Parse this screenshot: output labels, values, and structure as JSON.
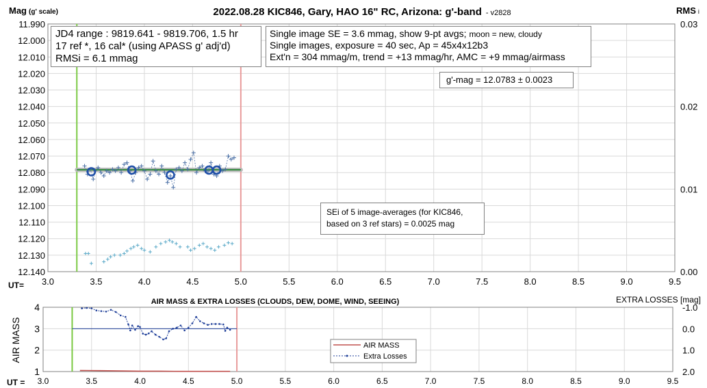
{
  "header": {
    "title": "2022.08.28 KIC846, Gary, HAO 16\" RC, Arizona: g'-band",
    "version": "- v2828",
    "left_axis_title": "Mag",
    "left_axis_sub": "(g' scale)",
    "right_axis_title": "RMS",
    "right_axis_sub": "i"
  },
  "info_left": {
    "line1": "JD4 range : 9819.641 - 9819.706,  1.5 hr",
    "line2": "17 ref *, 16 cal* (using APASS g' adj'd)",
    "line3": "RMSi = 6.1 mmag"
  },
  "info_right": {
    "line1a": "Single image SE = 3.6 mmag, show  9-pt avgs;",
    "line1b": "moon = new, cloudy",
    "line2": "Single images, exposure = 40 sec, Ap = 45x4x12b3",
    "line3": "Ext'n = 304 mmag/m, trend = +13 mmag/hr, AMC = +9 mmag/airmass"
  },
  "gmag_box": "g'-mag = 12.0783 ± 0.0023",
  "sei_box": {
    "line1": "SEi of 5 image-averages (for KIC846,",
    "line2": "based on 3 ref stars) = 0.0025 mag"
  },
  "bottom": {
    "title": "AIR MASS & EXTRA LOSSES (CLOUDS, DEW, DOME, WIND, SEEING)",
    "right_title": "EXTRA LOSSES [mag]",
    "left_axis_title": "AIR MASS",
    "legend_airmass": "AIR MASS",
    "legend_extra": "Extra Losses"
  },
  "ut_label_top": "UT=",
  "ut_label_bottom": "UT =",
  "colors": {
    "grid": "#d9d9d9",
    "mag_points": "#4a6fa5",
    "averages": "#1f4fa8",
    "fit_line_green": "#2e8b3a",
    "fit_line_gray": "#b8b8b8",
    "rms_points": "#5aa9c8",
    "start_line": "#7ac943",
    "end_line": "#e89a9a",
    "airmass": "#c0504d",
    "extra_losses": "#1f3f99"
  },
  "chart_data": [
    {
      "type": "scatter",
      "title": "2022.08.28 KIC846, Gary, HAO 16\" RC, Arizona: g'-band",
      "xlabel": "UT=",
      "ylabel": "Mag (g' scale)",
      "y2label": "RMSi",
      "xlim": [
        3.0,
        9.5
      ],
      "ylim": [
        11.99,
        12.14
      ],
      "y_inverted": true,
      "y2lim": [
        0.0,
        0.03
      ],
      "x_ticks": [
        "3.0",
        "3.5",
        "4.0",
        "4.5",
        "5.0",
        "5.5",
        "6.0",
        "6.5",
        "7.0",
        "7.5",
        "8.0",
        "8.5",
        "9.0",
        "9.5"
      ],
      "y_ticks": [
        "11.990",
        "12.000",
        "12.010",
        "12.020",
        "12.030",
        "12.040",
        "12.050",
        "12.060",
        "12.070",
        "12.080",
        "12.090",
        "12.100",
        "12.110",
        "12.120",
        "12.130",
        "12.140"
      ],
      "y2_ticks": [
        "0.00",
        "0.01",
        "0.02",
        "0.03"
      ],
      "grid": true,
      "vlines": [
        3.3,
        5.0
      ],
      "fit_level": 12.0783,
      "fit_x": [
        3.3,
        5.0
      ],
      "series": [
        {
          "kind": "singles",
          "x": [
            3.38,
            3.41,
            3.44,
            3.47,
            3.49,
            3.52,
            3.55,
            3.58,
            3.61,
            3.64,
            3.67,
            3.7,
            3.73,
            3.76,
            3.79,
            3.82,
            3.85,
            3.88,
            3.91,
            3.94,
            3.97,
            4.0,
            4.03,
            4.06,
            4.09,
            4.12,
            4.15,
            4.18,
            4.21,
            4.24,
            4.27,
            4.3,
            4.33,
            4.36,
            4.39,
            4.42,
            4.45,
            4.48,
            4.51,
            4.54,
            4.57,
            4.6,
            4.63,
            4.66,
            4.69,
            4.72,
            4.75,
            4.78,
            4.81,
            4.84,
            4.87,
            4.9,
            4.93
          ],
          "y": [
            12.076,
            12.081,
            12.078,
            12.084,
            12.079,
            12.077,
            12.08,
            12.082,
            12.079,
            12.08,
            12.078,
            12.079,
            12.077,
            12.08,
            12.075,
            12.074,
            12.079,
            12.085,
            12.08,
            12.077,
            12.076,
            12.079,
            12.084,
            12.081,
            12.073,
            12.079,
            12.081,
            12.076,
            12.08,
            12.086,
            12.082,
            12.089,
            12.078,
            12.077,
            12.079,
            12.074,
            12.078,
            12.072,
            12.068,
            12.08,
            12.077,
            12.076,
            12.079,
            12.079,
            12.074,
            12.081,
            12.082,
            12.076,
            12.079,
            12.078,
            12.07,
            12.072,
            12.071
          ]
        },
        {
          "kind": "averages",
          "x": [
            3.45,
            3.87,
            4.27,
            4.67,
            4.75
          ],
          "y": [
            12.0795,
            12.0785,
            12.0815,
            12.0785,
            12.0785
          ]
        },
        {
          "kind": "rms",
          "x": [
            3.39,
            3.42,
            3.45,
            3.58,
            3.62,
            3.65,
            3.69,
            3.75,
            3.79,
            3.82,
            3.86,
            3.89,
            3.93,
            3.97,
            4.0,
            4.06,
            4.12,
            4.17,
            4.22,
            4.26,
            4.29,
            4.33,
            4.37,
            4.45,
            4.48,
            4.52,
            4.57,
            4.61,
            4.65,
            4.69,
            4.73,
            4.77,
            4.83,
            4.87,
            4.91
          ],
          "y2": [
            0.0022,
            0.0022,
            0.001,
            0.0012,
            0.0015,
            0.0018,
            0.002,
            0.002,
            0.0022,
            0.0025,
            0.0028,
            0.003,
            0.0032,
            0.0028,
            0.0026,
            0.0024,
            0.003,
            0.0034,
            0.0036,
            0.0038,
            0.0036,
            0.0034,
            0.003,
            0.003,
            0.0026,
            0.0028,
            0.0032,
            0.0034,
            0.003,
            0.0028,
            0.0026,
            0.003,
            0.0032,
            0.0035,
            0.0034
          ]
        }
      ]
    },
    {
      "type": "line",
      "title": "AIR MASS & EXTRA LOSSES (CLOUDS, DEW, DOME, WIND, SEEING)",
      "xlabel": "UT =",
      "ylabel": "AIR MASS",
      "y2label": "EXTRA LOSSES [mag]",
      "xlim": [
        3.0,
        9.5
      ],
      "ylim": [
        1,
        4
      ],
      "y2lim": [
        -1.0,
        2.0
      ],
      "y2_inverted": true,
      "x_ticks": [
        "3.0",
        "3.5",
        "4.0",
        "4.5",
        "5.0",
        "5.5",
        "6.0",
        "6.5",
        "7.0",
        "7.5",
        "8.0",
        "8.5",
        "9.0",
        "9.5"
      ],
      "y_ticks": [
        "1",
        "2",
        "3",
        "4"
      ],
      "y2_ticks": [
        "-1.0",
        "0.0",
        "1.0",
        "2.0"
      ],
      "grid": true,
      "vlines": [
        3.3,
        5.0
      ],
      "zero_line_y2": 0.0,
      "series": [
        {
          "name": "AIR MASS",
          "x": [
            3.38,
            3.6,
            3.8,
            4.0,
            4.2,
            4.4,
            4.6,
            4.8,
            4.93
          ],
          "y": [
            1.05,
            1.04,
            1.03,
            1.02,
            1.02,
            1.01,
            1.01,
            1.01,
            1.01
          ]
        },
        {
          "name": "Extra Losses",
          "x": [
            3.4,
            3.45,
            3.5,
            3.55,
            3.6,
            3.65,
            3.7,
            3.75,
            3.8,
            3.85,
            3.88,
            3.9,
            3.92,
            3.95,
            3.98,
            4.0,
            4.03,
            4.06,
            4.09,
            4.12,
            4.16,
            4.2,
            4.24,
            4.27,
            4.3,
            4.34,
            4.38,
            4.42,
            4.46,
            4.5,
            4.54,
            4.58,
            4.62,
            4.66,
            4.7,
            4.74,
            4.78,
            4.82,
            4.86,
            4.88,
            4.9,
            4.93
          ],
          "y2": [
            -0.95,
            -0.97,
            -0.95,
            -0.85,
            -0.82,
            -0.8,
            -0.88,
            -0.78,
            -0.62,
            -0.55,
            -0.2,
            0.08,
            -0.15,
            0.05,
            -0.12,
            -0.08,
            0.23,
            0.28,
            0.22,
            0.12,
            0.28,
            0.38,
            0.5,
            0.45,
            0.12,
            0.0,
            -0.05,
            -0.15,
            0.08,
            -0.05,
            -0.25,
            -0.55,
            -0.35,
            -0.25,
            -0.18,
            -0.22,
            -0.22,
            -0.22,
            -0.2,
            0.1,
            -0.05,
            0.05
          ]
        }
      ]
    }
  ]
}
